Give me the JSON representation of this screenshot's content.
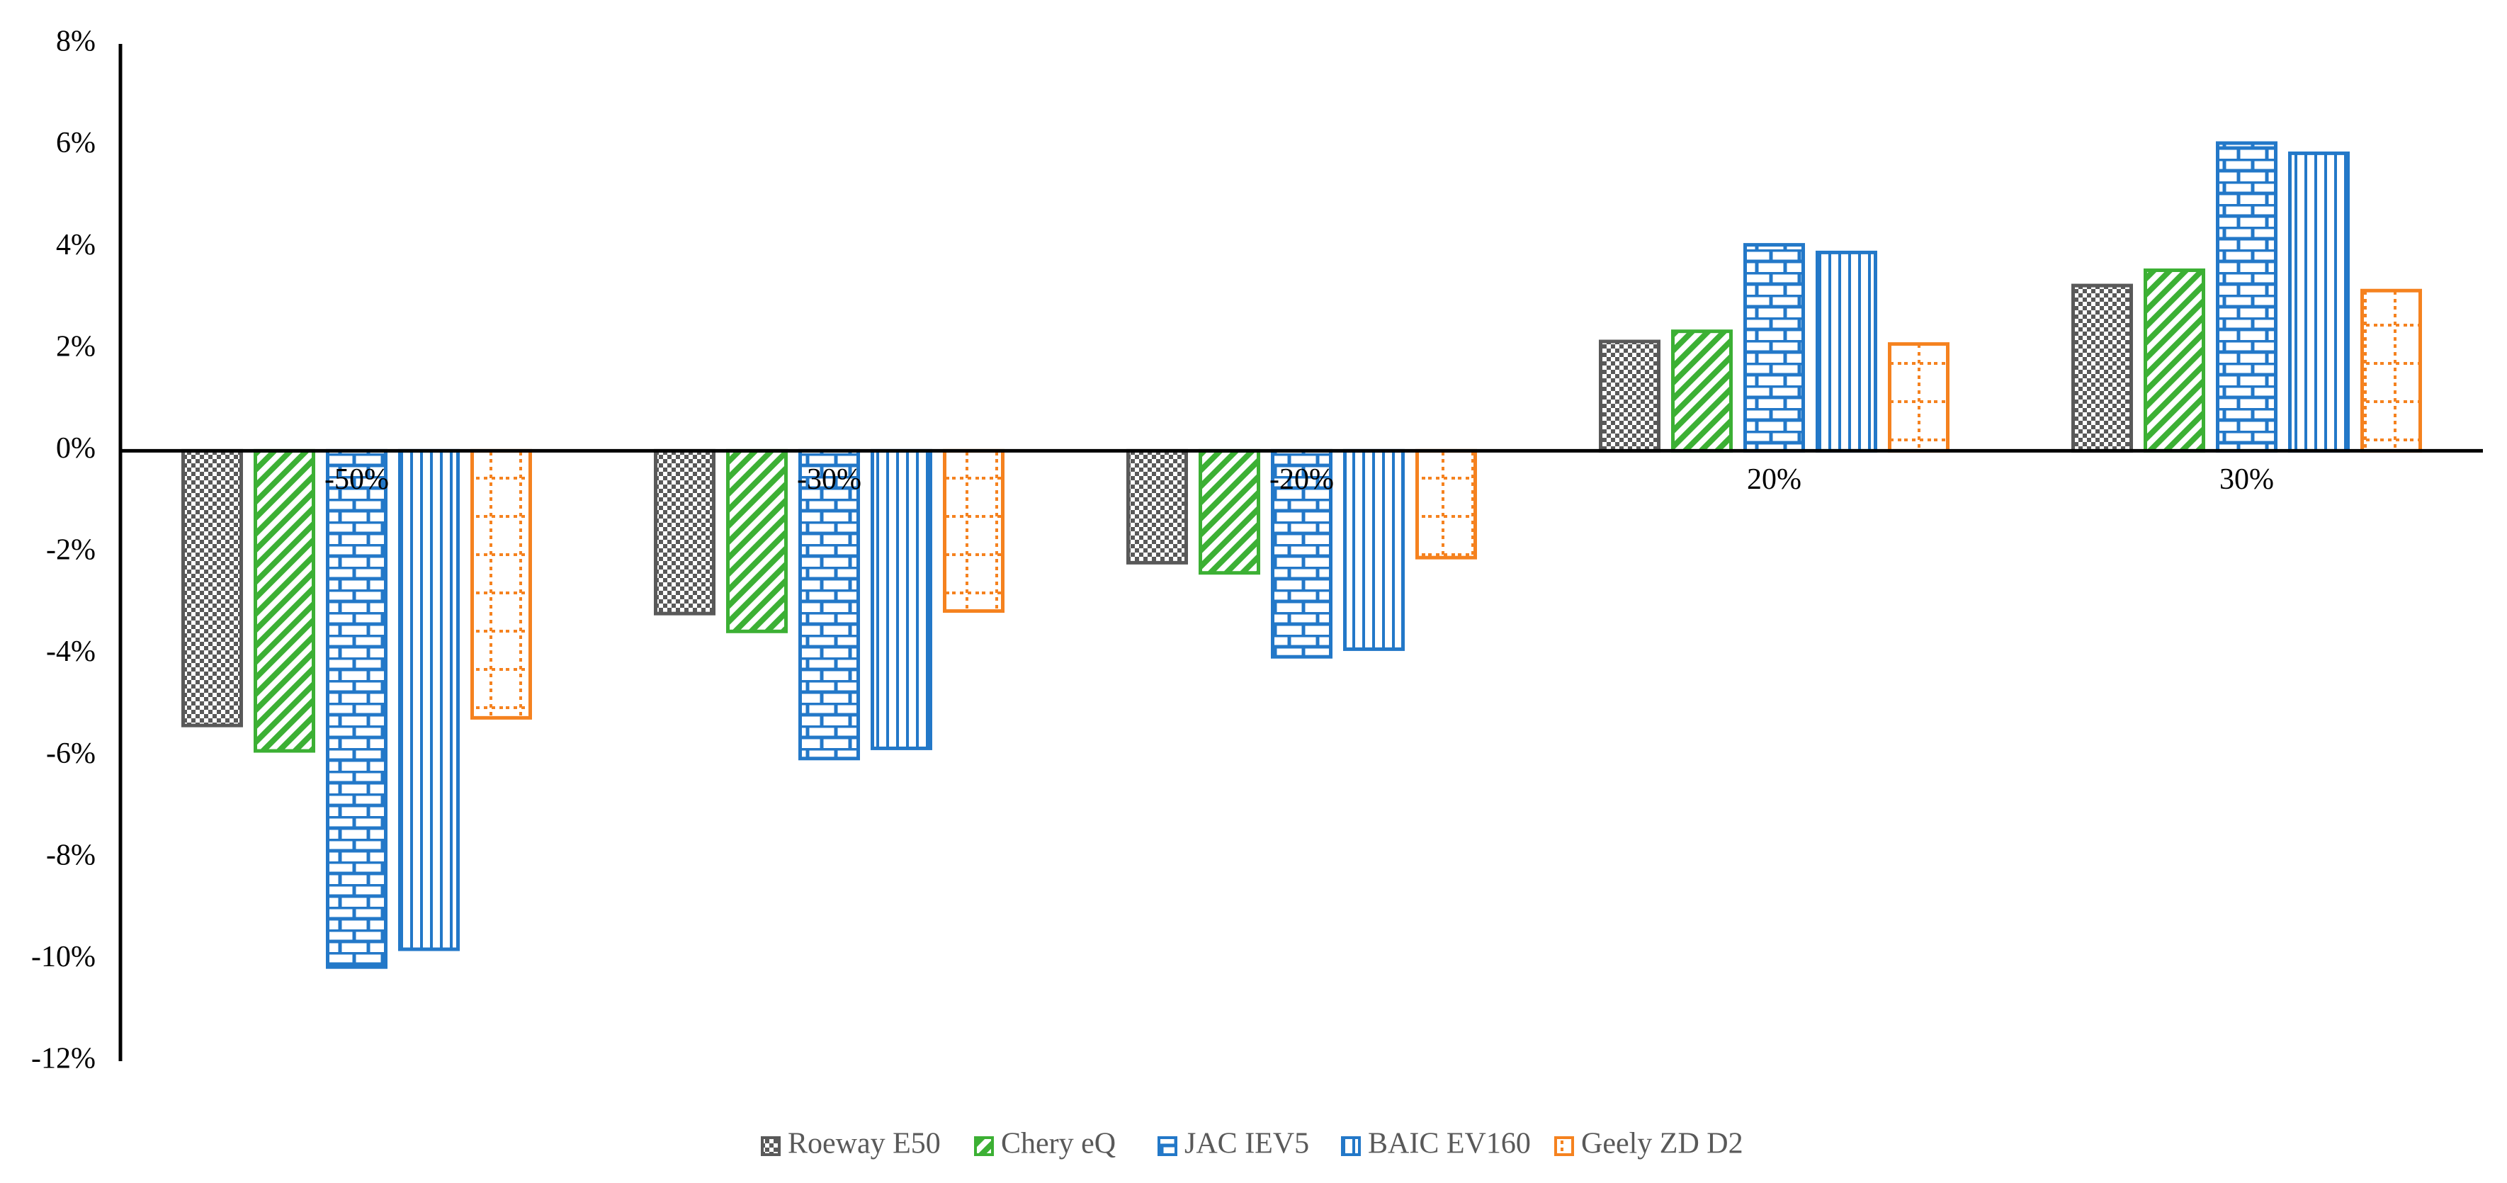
{
  "chart_data": {
    "type": "bar",
    "categories": [
      "-50%",
      "-30%",
      "-20%",
      "20%",
      "30%"
    ],
    "series": [
      {
        "name": "Roeway E50",
        "values": [
          -5.4,
          -3.2,
          -2.2,
          2.15,
          3.25
        ],
        "color": "#595959",
        "pattern": "checker"
      },
      {
        "name": "Chery eQ",
        "values": [
          -5.9,
          -3.55,
          -2.4,
          2.35,
          3.55
        ],
        "color": "#3cb034",
        "pattern": "diagonal"
      },
      {
        "name": "JAC IEV5",
        "values": [
          -10.15,
          -6.05,
          -4.05,
          4.05,
          6.05
        ],
        "color": "#2378c8",
        "pattern": "brick"
      },
      {
        "name": "BAIC EV160",
        "values": [
          -9.8,
          -5.85,
          -3.9,
          3.9,
          5.85
        ],
        "color": "#2378c8",
        "pattern": "vertical"
      },
      {
        "name": "Geely ZD D2",
        "values": [
          -5.25,
          -3.15,
          -2.1,
          2.1,
          3.15
        ],
        "color": "#f5821f",
        "pattern": "dotted-grid"
      }
    ],
    "y_ticks": [
      "8%",
      "6%",
      "4%",
      "2%",
      "0%",
      "-2%",
      "-4%",
      "-6%",
      "-8%",
      "-10%",
      "-12%"
    ],
    "ylim": [
      -12,
      8
    ],
    "title": "",
    "xlabel": "",
    "ylabel": "",
    "grid": false,
    "legend_position": "bottom"
  }
}
